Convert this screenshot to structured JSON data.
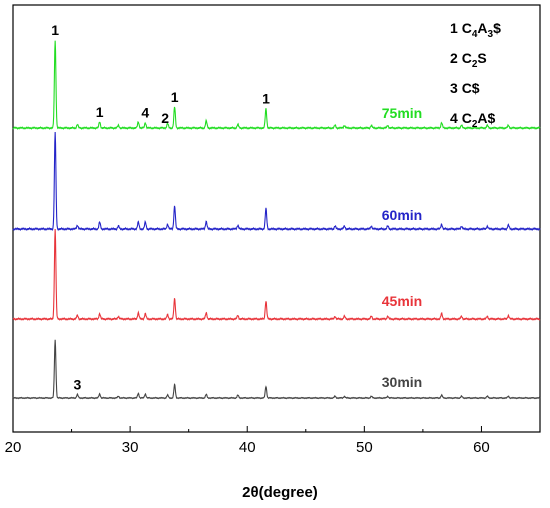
{
  "chart_data": {
    "type": "line",
    "xlabel": "2θ(degree)",
    "xlim": [
      20,
      65
    ],
    "x_ticks": [
      20,
      30,
      40,
      50,
      60
    ],
    "y_axis_visible": false,
    "grid": false,
    "series": [
      {
        "name": "30min",
        "color": "#444444",
        "peaks": [
          {
            "x": 23.6,
            "h": 1.0
          },
          {
            "x": 25.5,
            "h": 0.06
          },
          {
            "x": 27.4,
            "h": 0.07
          },
          {
            "x": 29.0,
            "h": 0.03
          },
          {
            "x": 30.7,
            "h": 0.08
          },
          {
            "x": 31.3,
            "h": 0.07
          },
          {
            "x": 33.2,
            "h": 0.05
          },
          {
            "x": 33.8,
            "h": 0.23
          },
          {
            "x": 36.5,
            "h": 0.06
          },
          {
            "x": 39.2,
            "h": 0.05
          },
          {
            "x": 41.6,
            "h": 0.2
          },
          {
            "x": 47.5,
            "h": 0.03
          },
          {
            "x": 48.3,
            "h": 0.03
          },
          {
            "x": 50.6,
            "h": 0.03
          },
          {
            "x": 52.0,
            "h": 0.03
          },
          {
            "x": 56.6,
            "h": 0.05
          },
          {
            "x": 58.3,
            "h": 0.03
          },
          {
            "x": 60.5,
            "h": 0.03
          },
          {
            "x": 62.3,
            "h": 0.03
          }
        ]
      },
      {
        "name": "45min",
        "color": "#e8343a",
        "peaks": [
          {
            "x": 23.6,
            "h": 1.0
          },
          {
            "x": 25.5,
            "h": 0.04
          },
          {
            "x": 27.4,
            "h": 0.06
          },
          {
            "x": 29.0,
            "h": 0.03
          },
          {
            "x": 30.7,
            "h": 0.07
          },
          {
            "x": 31.3,
            "h": 0.06
          },
          {
            "x": 33.2,
            "h": 0.05
          },
          {
            "x": 33.8,
            "h": 0.23
          },
          {
            "x": 36.5,
            "h": 0.07
          },
          {
            "x": 39.2,
            "h": 0.04
          },
          {
            "x": 41.6,
            "h": 0.2
          },
          {
            "x": 47.5,
            "h": 0.03
          },
          {
            "x": 48.3,
            "h": 0.03
          },
          {
            "x": 50.6,
            "h": 0.03
          },
          {
            "x": 52.0,
            "h": 0.03
          },
          {
            "x": 56.6,
            "h": 0.06
          },
          {
            "x": 58.3,
            "h": 0.03
          },
          {
            "x": 60.5,
            "h": 0.03
          },
          {
            "x": 62.3,
            "h": 0.04
          }
        ]
      },
      {
        "name": "60min",
        "color": "#2424c8",
        "peaks": [
          {
            "x": 23.6,
            "h": 1.0
          },
          {
            "x": 25.5,
            "h": 0.04
          },
          {
            "x": 27.4,
            "h": 0.07
          },
          {
            "x": 29.0,
            "h": 0.03
          },
          {
            "x": 30.7,
            "h": 0.07
          },
          {
            "x": 31.3,
            "h": 0.07
          },
          {
            "x": 33.2,
            "h": 0.05
          },
          {
            "x": 33.8,
            "h": 0.24
          },
          {
            "x": 36.5,
            "h": 0.08
          },
          {
            "x": 39.2,
            "h": 0.04
          },
          {
            "x": 41.6,
            "h": 0.21
          },
          {
            "x": 47.5,
            "h": 0.03
          },
          {
            "x": 48.3,
            "h": 0.03
          },
          {
            "x": 50.6,
            "h": 0.03
          },
          {
            "x": 52.0,
            "h": 0.03
          },
          {
            "x": 56.6,
            "h": 0.05
          },
          {
            "x": 58.3,
            "h": 0.03
          },
          {
            "x": 60.5,
            "h": 0.03
          },
          {
            "x": 62.3,
            "h": 0.04
          }
        ]
      },
      {
        "name": "75min",
        "color": "#22dd22",
        "peaks": [
          {
            "x": 23.6,
            "h": 1.0
          },
          {
            "x": 25.5,
            "h": 0.04
          },
          {
            "x": 27.4,
            "h": 0.07
          },
          {
            "x": 29.0,
            "h": 0.03
          },
          {
            "x": 30.7,
            "h": 0.07
          },
          {
            "x": 31.3,
            "h": 0.06
          },
          {
            "x": 33.2,
            "h": 0.05
          },
          {
            "x": 33.8,
            "h": 0.24
          },
          {
            "x": 36.5,
            "h": 0.08
          },
          {
            "x": 39.2,
            "h": 0.04
          },
          {
            "x": 41.6,
            "h": 0.22
          },
          {
            "x": 47.5,
            "h": 0.03
          },
          {
            "x": 48.3,
            "h": 0.03
          },
          {
            "x": 50.6,
            "h": 0.03
          },
          {
            "x": 52.0,
            "h": 0.03
          },
          {
            "x": 56.6,
            "h": 0.06
          },
          {
            "x": 58.3,
            "h": 0.03
          },
          {
            "x": 60.5,
            "h": 0.03
          },
          {
            "x": 62.3,
            "h": 0.03
          }
        ]
      }
    ],
    "peak_annotations": [
      {
        "text": "1",
        "x": 23.6,
        "series": "75min"
      },
      {
        "text": "1",
        "x": 27.4,
        "series": "75min"
      },
      {
        "text": "4",
        "x": 31.3,
        "series": "75min"
      },
      {
        "text": "2",
        "x": 33.0,
        "series": "75min"
      },
      {
        "text": "1",
        "x": 33.8,
        "series": "75min"
      },
      {
        "text": "1",
        "x": 41.6,
        "series": "75min"
      },
      {
        "text": "3",
        "x": 25.5,
        "series": "30min"
      }
    ],
    "phase_legend": [
      {
        "num": "1",
        "formula": [
          [
            "C",
            false
          ],
          [
            "4",
            true
          ],
          [
            "A",
            false
          ],
          [
            "3",
            true
          ],
          [
            "$",
            false
          ]
        ]
      },
      {
        "num": "2",
        "formula": [
          [
            "C",
            false
          ],
          [
            "2",
            true
          ],
          [
            "S",
            false
          ]
        ]
      },
      {
        "num": "3",
        "formula": [
          [
            "C$",
            false
          ]
        ]
      },
      {
        "num": "4",
        "formula": [
          [
            "C",
            false
          ],
          [
            "2",
            true
          ],
          [
            "A$",
            false
          ]
        ]
      }
    ]
  }
}
